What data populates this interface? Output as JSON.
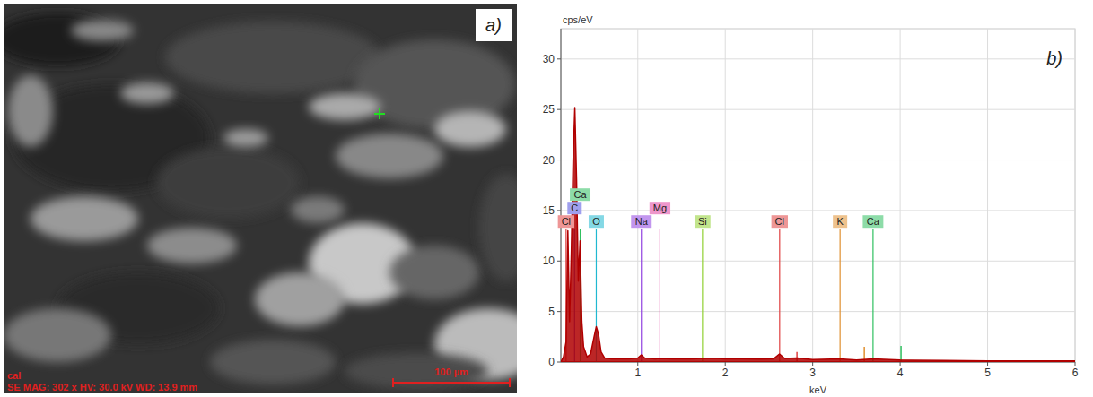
{
  "image": {
    "label": "a)",
    "sample": "cal",
    "info": "SE MAG: 302 x HV: 30.0 kV WD: 13.9 mm",
    "scale_bar": "100 µm"
  },
  "chart_data": {
    "type": "area",
    "panel_label": "b)",
    "y_label": "cps/eV",
    "x_label": "keV",
    "color": "#b00000",
    "x": [
      0.12,
      0.15,
      0.18,
      0.2,
      0.22,
      0.24,
      0.26,
      0.28,
      0.3,
      0.32,
      0.34,
      0.36,
      0.38,
      0.42,
      0.46,
      0.5,
      0.525,
      0.55,
      0.58,
      0.62,
      0.7,
      0.8,
      0.9,
      1.0,
      1.04,
      1.08,
      1.2,
      1.25,
      1.4,
      1.6,
      1.74,
      1.9,
      2.0,
      2.2,
      2.4,
      2.55,
      2.62,
      2.68,
      2.82,
      3.0,
      3.31,
      3.5,
      3.69,
      4.0,
      4.5,
      5.0,
      5.5,
      6.0
    ],
    "values": [
      0,
      0.5,
      2,
      13,
      4,
      11,
      20,
      25.2,
      18,
      8,
      12,
      4,
      1.5,
      0.5,
      0.8,
      2.5,
      3.5,
      2.8,
      1,
      0.4,
      0.3,
      0.3,
      0.3,
      0.4,
      0.7,
      0.4,
      0.3,
      0.35,
      0.3,
      0.3,
      0.35,
      0.35,
      0.3,
      0.3,
      0.28,
      0.3,
      0.8,
      0.35,
      0.4,
      0.25,
      0.3,
      0.2,
      0.3,
      0.2,
      0.15,
      0.12,
      0.1,
      0.1
    ],
    "markers": [
      {
        "label": "Cl",
        "x": 0.18,
        "value": 13.2,
        "color": "#e04040"
      },
      {
        "label": "C",
        "x": 0.277,
        "value": 13.2,
        "color": "#5050e0"
      },
      {
        "label": "Ca",
        "x": 0.341,
        "value": 13.2,
        "color": "#30c060"
      },
      {
        "label": "O",
        "x": 0.525,
        "value": 13.2,
        "color": "#20b8d0"
      },
      {
        "label": "Na",
        "x": 1.041,
        "value": 13.2,
        "color": "#9040e0"
      },
      {
        "label": "Mg",
        "x": 1.253,
        "value": 13.2,
        "color": "#e040a0"
      },
      {
        "label": "Si",
        "x": 1.74,
        "value": 13.2,
        "color": "#90d030"
      },
      {
        "label": "Cl",
        "x": 2.622,
        "value": 13.2,
        "color": "#e04040"
      },
      {
        "label": "K",
        "x": 3.313,
        "value": 13.2,
        "color": "#e09030"
      },
      {
        "label": "Ca",
        "x": 3.69,
        "value": 13.2,
        "color": "#30c060"
      }
    ],
    "minor_markers": [
      {
        "x": 2.82,
        "value": 1,
        "color": "#e04040"
      },
      {
        "x": 3.59,
        "value": 1.5,
        "color": "#e09030"
      },
      {
        "x": 4.01,
        "value": 1.6,
        "color": "#30c060"
      }
    ],
    "xlim": [
      0.12,
      6
    ],
    "xticks": [
      1,
      2,
      3,
      4,
      5,
      6
    ],
    "ylim": [
      0,
      33
    ],
    "yticks": [
      0,
      5,
      10,
      15,
      20,
      25,
      30
    ],
    "grid": true
  }
}
